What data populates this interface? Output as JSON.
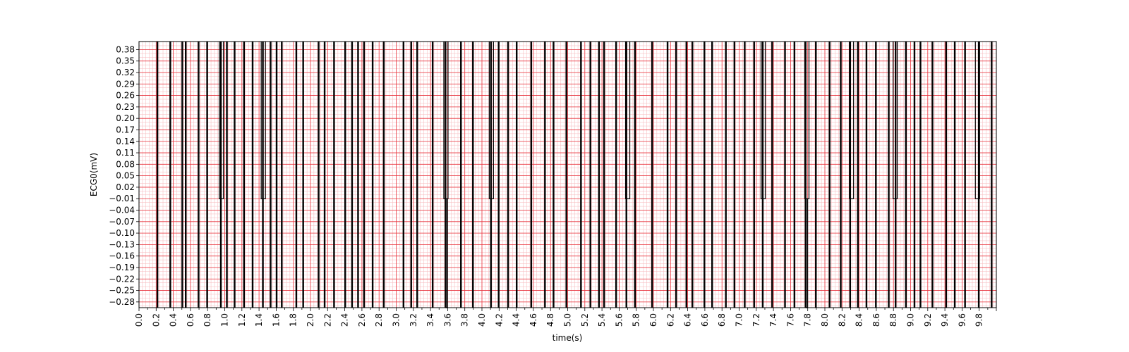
{
  "chart_data": {
    "type": "line",
    "title": "",
    "xlabel": "time(s)",
    "ylabel": "ECG0(mV)",
    "xlim": [
      0.0,
      10.0
    ],
    "ylim": [
      -0.295,
      0.401
    ],
    "x_ticks": [
      "0.0",
      "0.2",
      "0.4",
      "0.6",
      "0.8",
      "1.0",
      "1.2",
      "1.4",
      "1.6",
      "1.8",
      "2.0",
      "2.2",
      "2.4",
      "2.6",
      "2.8",
      "3.0",
      "3.2",
      "3.4",
      "3.6",
      "3.8",
      "4.0",
      "4.2",
      "4.4",
      "4.6",
      "4.8",
      "5.0",
      "5.2",
      "5.4",
      "5.6",
      "5.8",
      "6.0",
      "6.2",
      "6.4",
      "6.6",
      "6.8",
      "7.0",
      "7.2",
      "7.4",
      "7.6",
      "7.8",
      "8.0",
      "8.2",
      "8.4",
      "8.6",
      "8.8",
      "9.0",
      "9.2",
      "9.4",
      "9.6",
      "9.8"
    ],
    "y_ticks": [
      "0.38",
      "0.35",
      "0.32",
      "0.29",
      "0.26",
      "0.23",
      "0.20",
      "0.17",
      "0.14",
      "0.11",
      "0.08",
      "0.05",
      "0.02",
      "−0.01",
      "−0.04",
      "−0.07",
      "−0.10",
      "−0.13",
      "−0.16",
      "−0.19",
      "−0.22",
      "−0.25",
      "−0.28"
    ],
    "grid": {
      "major": true,
      "minor": true,
      "major_color": "#e8303a",
      "minor_color": "#f7b7bb"
    },
    "line_color": "#000000",
    "series": [
      {
        "baseline": -0.01,
        "top": 0.401,
        "bottom": -0.295,
        "up_segments": [
          [
            0.21,
            0.22
          ],
          [
            0.36,
            0.37
          ],
          [
            0.5,
            0.51
          ],
          [
            0.54,
            0.55
          ],
          [
            0.69,
            0.7
          ],
          [
            0.79,
            0.8
          ],
          [
            0.95,
            0.96
          ],
          [
            1.02,
            1.03
          ],
          [
            1.11,
            1.12
          ],
          [
            1.22,
            1.23
          ],
          [
            1.32,
            1.33
          ],
          [
            1.44,
            1.45
          ],
          [
            1.53,
            1.54
          ],
          [
            1.6,
            1.61
          ],
          [
            1.66,
            1.67
          ],
          [
            1.83,
            1.84
          ],
          [
            1.91,
            1.92
          ],
          [
            2.09,
            2.1
          ],
          [
            2.16,
            2.17
          ],
          [
            2.27,
            2.28
          ],
          [
            2.4,
            2.41
          ],
          [
            2.48,
            2.49
          ],
          [
            2.55,
            2.56
          ],
          [
            2.62,
            2.63
          ],
          [
            2.72,
            2.73
          ],
          [
            2.85,
            2.86
          ],
          [
            3.08,
            3.09
          ],
          [
            3.17,
            3.18
          ],
          [
            3.24,
            3.25
          ],
          [
            3.42,
            3.43
          ],
          [
            3.57,
            3.58
          ],
          [
            3.75,
            3.76
          ],
          [
            3.89,
            3.9
          ],
          [
            4.1,
            4.11
          ],
          [
            4.19,
            4.2
          ],
          [
            4.3,
            4.31
          ],
          [
            4.4,
            4.41
          ],
          [
            4.57,
            4.58
          ],
          [
            4.73,
            4.74
          ],
          [
            4.83,
            4.84
          ],
          [
            4.98,
            4.99
          ],
          [
            5.15,
            5.16
          ],
          [
            5.26,
            5.27
          ],
          [
            5.36,
            5.37
          ],
          [
            5.42,
            5.43
          ],
          [
            5.56,
            5.57
          ],
          [
            5.68,
            5.69
          ],
          [
            5.78,
            5.79
          ],
          [
            5.98,
            5.99
          ],
          [
            6.16,
            6.17
          ],
          [
            6.26,
            6.27
          ],
          [
            6.38,
            6.39
          ],
          [
            6.45,
            6.46
          ],
          [
            6.59,
            6.6
          ],
          [
            6.68,
            6.69
          ],
          [
            6.84,
            6.85
          ],
          [
            6.94,
            6.95
          ],
          [
            7.06,
            7.07
          ],
          [
            7.17,
            7.18
          ],
          [
            7.27,
            7.28
          ],
          [
            7.38,
            7.39
          ],
          [
            7.53,
            7.54
          ],
          [
            7.64,
            7.65
          ],
          [
            7.77,
            7.78
          ],
          [
            7.89,
            7.9
          ],
          [
            8.05,
            8.06
          ],
          [
            8.18,
            8.19
          ],
          [
            8.29,
            8.3
          ],
          [
            8.38,
            8.39
          ],
          [
            8.48,
            8.49
          ],
          [
            8.59,
            8.6
          ],
          [
            8.74,
            8.75
          ],
          [
            8.82,
            8.83
          ],
          [
            8.94,
            8.95
          ],
          [
            9.04,
            9.05
          ],
          [
            9.11,
            9.12
          ],
          [
            9.25,
            9.26
          ],
          [
            9.41,
            9.42
          ],
          [
            9.51,
            9.52
          ],
          [
            9.63,
            9.64
          ],
          [
            9.79,
            9.8
          ],
          [
            9.94,
            9.95
          ]
        ],
        "down_spikes": [
          3.59,
          7.79
        ],
        "notches": [
          0.96,
          1.45,
          3.58,
          4.11,
          5.7,
          7.28,
          7.79,
          8.31,
          8.82,
          9.78
        ]
      }
    ]
  }
}
